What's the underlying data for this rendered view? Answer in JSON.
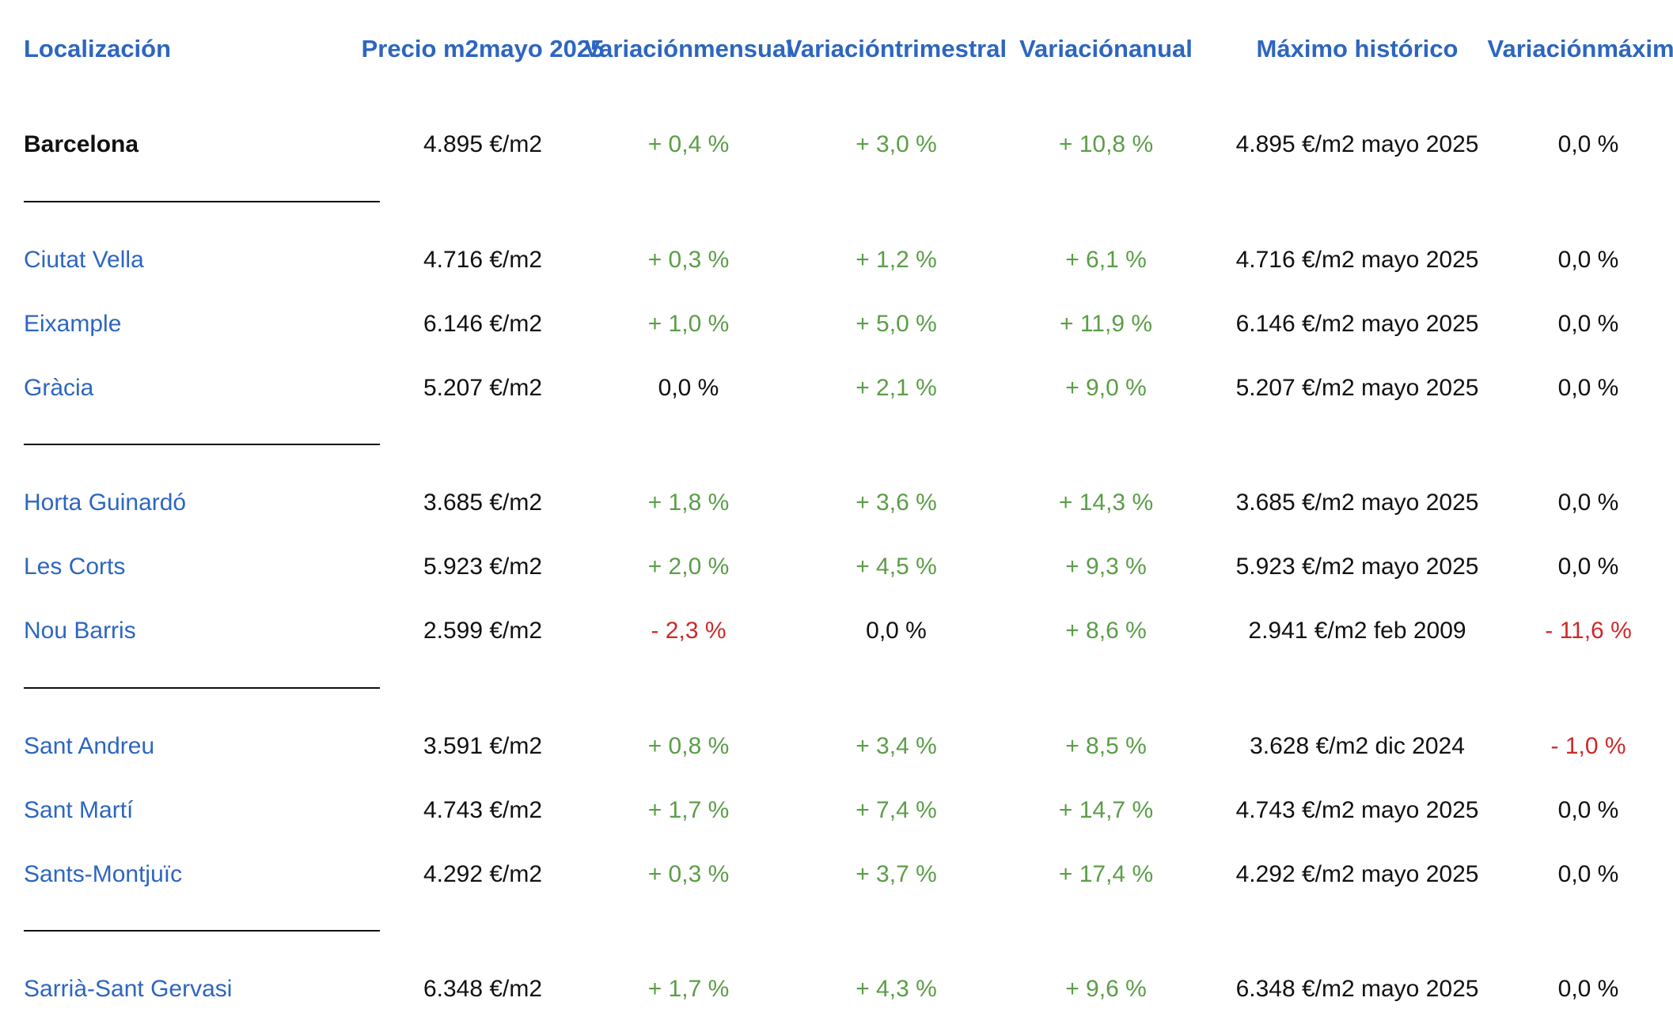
{
  "colors": {
    "header": "#2d66c0",
    "positive": "#5b9e48",
    "negative": "#cc2a2a",
    "text": "#111111"
  },
  "header": {
    "localizacion": "Localización",
    "precio": [
      "Precio m2",
      "mayo 2025"
    ],
    "mensual": [
      "Variación",
      "mensual"
    ],
    "trimestral": [
      "Variación",
      "trimestral"
    ],
    "anual": [
      "Variación",
      "anual"
    ],
    "maximo": "Máximo histórico",
    "var_maximo": [
      "Variación",
      "máximo"
    ]
  },
  "rows": [
    {
      "loc": "Barcelona",
      "precio": "4.895 €/m2",
      "mensual": "+ 0,4 %",
      "trimestral": "+ 3,0 %",
      "anual": "+ 10,8 %",
      "maximo": "4.895 €/m2 mayo 2025",
      "var_maximo": "0,0 %"
    },
    {
      "loc": "Ciutat Vella",
      "precio": "4.716 €/m2",
      "mensual": "+ 0,3 %",
      "trimestral": "+ 1,2 %",
      "anual": "+ 6,1 %",
      "maximo": "4.716 €/m2 mayo 2025",
      "var_maximo": "0,0 %"
    },
    {
      "loc": "Eixample",
      "precio": "6.146 €/m2",
      "mensual": "+ 1,0 %",
      "trimestral": "+ 5,0 %",
      "anual": "+ 11,9 %",
      "maximo": "6.146 €/m2 mayo 2025",
      "var_maximo": "0,0 %"
    },
    {
      "loc": "Gràcia",
      "precio": "5.207 €/m2",
      "mensual": "0,0 %",
      "trimestral": "+ 2,1 %",
      "anual": "+ 9,0 %",
      "maximo": "5.207 €/m2 mayo 2025",
      "var_maximo": "0,0 %"
    },
    {
      "loc": "Horta Guinardó",
      "precio": "3.685 €/m2",
      "mensual": "+ 1,8 %",
      "trimestral": "+ 3,6 %",
      "anual": "+ 14,3 %",
      "maximo": "3.685 €/m2 mayo 2025",
      "var_maximo": "0,0 %"
    },
    {
      "loc": "Les Corts",
      "precio": "5.923 €/m2",
      "mensual": "+ 2,0 %",
      "trimestral": "+ 4,5 %",
      "anual": "+ 9,3 %",
      "maximo": "5.923 €/m2 mayo 2025",
      "var_maximo": "0,0 %"
    },
    {
      "loc": "Nou Barris",
      "precio": "2.599 €/m2",
      "mensual": "- 2,3 %",
      "trimestral": "0,0 %",
      "anual": "+ 8,6 %",
      "maximo": "2.941 €/m2 feb 2009",
      "var_maximo": "- 11,6 %"
    },
    {
      "loc": "Sant Andreu",
      "precio": "3.591 €/m2",
      "mensual": "+ 0,8 %",
      "trimestral": "+ 3,4 %",
      "anual": "+ 8,5 %",
      "maximo": "3.628 €/m2 dic 2024",
      "var_maximo": "- 1,0 %"
    },
    {
      "loc": "Sant Martí",
      "precio": "4.743 €/m2",
      "mensual": "+ 1,7 %",
      "trimestral": "+ 7,4 %",
      "anual": "+ 14,7 %",
      "maximo": "4.743 €/m2 mayo 2025",
      "var_maximo": "0,0 %"
    },
    {
      "loc": "Sants-Montjuïc",
      "precio": "4.292 €/m2",
      "mensual": "+ 0,3 %",
      "trimestral": "+ 3,7 %",
      "anual": "+ 17,4 %",
      "maximo": "4.292 €/m2 mayo 2025",
      "var_maximo": "0,0 %"
    },
    {
      "loc": "Sarrià-Sant Gervasi",
      "precio": "6.348 €/m2",
      "mensual": "+ 1,7 %",
      "trimestral": "+ 4,3 %",
      "anual": "+ 9,6 %",
      "maximo": "6.348 €/m2 mayo 2025",
      "var_maximo": "0,0 %"
    }
  ]
}
